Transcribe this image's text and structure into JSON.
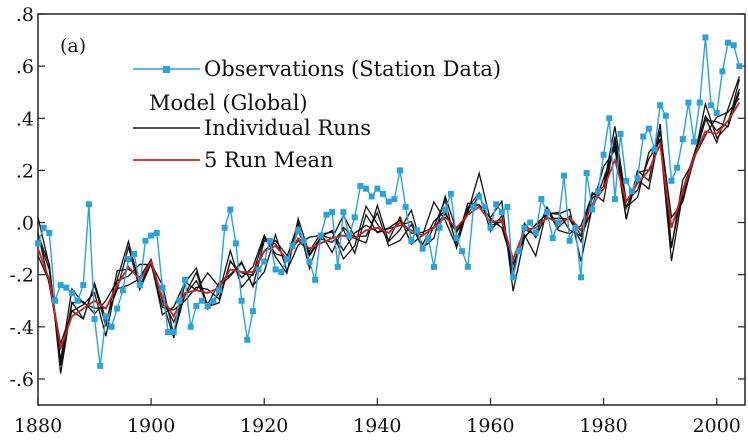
{
  "chart_data": {
    "type": "line",
    "panel_label": "(a)",
    "title": "",
    "xlabel": "",
    "ylabel": "",
    "xlim": [
      1880,
      2005
    ],
    "ylim": [
      -0.7,
      0.8
    ],
    "xticks": [
      1880,
      1900,
      1920,
      1940,
      1960,
      1980,
      2000
    ],
    "yticks": [
      {
        "value": 0.8,
        "label": ".8"
      },
      {
        "value": 0.6,
        "label": ".6"
      },
      {
        "value": 0.4,
        "label": ".4"
      },
      {
        "value": 0.2,
        "label": ".2"
      },
      {
        "value": 0.0,
        "label": ".0"
      },
      {
        "value": -0.2,
        "label": "-.2"
      },
      {
        "value": -0.4,
        "label": "-.4"
      },
      {
        "value": -0.6,
        "label": "-.6"
      }
    ],
    "grid": false,
    "legend": {
      "placement": "top-left",
      "entries": [
        {
          "label": "Observations (Station Data)",
          "color": "#29a3dc",
          "marker": "square"
        },
        {
          "label": "Model (Global)",
          "color": "",
          "marker": "none"
        },
        {
          "label": "Individual Runs",
          "color": "#111111",
          "marker": "none"
        },
        {
          "label": "5 Run Mean",
          "color": "#cc2222",
          "marker": "none"
        }
      ]
    },
    "series": [
      {
        "name": "Observations (Station Data)",
        "color": "#29a3dc",
        "x": [
          1880,
          1881,
          1882,
          1883,
          1884,
          1885,
          1886,
          1887,
          1888,
          1889,
          1890,
          1891,
          1892,
          1893,
          1894,
          1895,
          1896,
          1897,
          1898,
          1899,
          1900,
          1901,
          1902,
          1903,
          1904,
          1905,
          1906,
          1907,
          1908,
          1909,
          1910,
          1911,
          1912,
          1913,
          1914,
          1915,
          1916,
          1917,
          1918,
          1919,
          1920,
          1921,
          1922,
          1923,
          1924,
          1925,
          1926,
          1927,
          1928,
          1929,
          1930,
          1931,
          1932,
          1933,
          1934,
          1935,
          1936,
          1937,
          1938,
          1939,
          1940,
          1941,
          1942,
          1943,
          1944,
          1945,
          1946,
          1947,
          1948,
          1949,
          1950,
          1951,
          1952,
          1953,
          1954,
          1955,
          1956,
          1957,
          1958,
          1959,
          1960,
          1961,
          1962,
          1963,
          1964,
          1965,
          1966,
          1967,
          1968,
          1969,
          1970,
          1971,
          1972,
          1973,
          1974,
          1975,
          1976,
          1977,
          1978,
          1979,
          1980,
          1981,
          1982,
          1983,
          1984,
          1985,
          1986,
          1987,
          1988,
          1989,
          1990,
          1991,
          1992,
          1993,
          1994,
          1995,
          1996,
          1997,
          1998,
          1999,
          2000,
          2001,
          2002,
          2003,
          2004
        ],
        "values": [
          -0.08,
          -0.02,
          -0.04,
          -0.3,
          -0.24,
          -0.25,
          -0.27,
          -0.3,
          -0.24,
          0.07,
          -0.37,
          -0.55,
          -0.36,
          -0.4,
          -0.33,
          -0.26,
          -0.14,
          -0.12,
          -0.24,
          -0.07,
          -0.05,
          -0.04,
          -0.25,
          -0.42,
          -0.42,
          -0.3,
          -0.22,
          -0.4,
          -0.32,
          -0.3,
          -0.32,
          -0.3,
          -0.26,
          -0.02,
          0.05,
          -0.08,
          -0.3,
          -0.45,
          -0.34,
          -0.18,
          -0.15,
          -0.07,
          -0.18,
          -0.19,
          -0.14,
          -0.09,
          -0.03,
          -0.07,
          -0.15,
          -0.22,
          -0.05,
          0.03,
          0.04,
          -0.17,
          0.04,
          -0.05,
          0.02,
          0.14,
          0.13,
          0.1,
          0.13,
          0.11,
          0.08,
          0.09,
          0.2,
          0.06,
          -0.07,
          -0.03,
          -0.1,
          -0.06,
          -0.17,
          -0.02,
          0.05,
          0.11,
          -0.06,
          -0.11,
          -0.17,
          0.06,
          0.1,
          0.06,
          -0.02,
          0.07,
          0.04,
          0.06,
          -0.21,
          -0.11,
          -0.02,
          0.0,
          -0.04,
          0.09,
          0.04,
          -0.06,
          0.0,
          0.18,
          -0.07,
          -0.02,
          -0.21,
          0.19,
          0.05,
          0.12,
          0.26,
          0.4,
          0.09,
          0.34,
          0.16,
          0.12,
          0.17,
          0.33,
          0.36,
          0.28,
          0.45,
          0.41,
          0.16,
          0.21,
          0.32,
          0.46,
          0.31,
          0.46,
          0.71,
          0.45,
          0.42,
          0.58,
          0.69,
          0.68,
          0.6
        ]
      },
      {
        "name": "Individual Runs",
        "color": "#111111",
        "x": [
          1880,
          1882,
          1884,
          1886,
          1888,
          1890,
          1892,
          1894,
          1896,
          1898,
          1900,
          1902,
          1904,
          1906,
          1908,
          1910,
          1912,
          1914,
          1916,
          1918,
          1920,
          1922,
          1924,
          1926,
          1928,
          1930,
          1932,
          1934,
          1936,
          1938,
          1940,
          1942,
          1944,
          1946,
          1948,
          1950,
          1952,
          1954,
          1956,
          1958,
          1960,
          1962,
          1964,
          1966,
          1968,
          1970,
          1972,
          1974,
          1976,
          1978,
          1980,
          1982,
          1984,
          1986,
          1988,
          1990,
          1992,
          1994,
          1996,
          1998,
          2000,
          2002,
          2004
        ],
        "values": [
          -0.05,
          -0.2,
          -0.52,
          -0.34,
          -0.33,
          -0.28,
          -0.36,
          -0.22,
          -0.15,
          -0.23,
          -0.13,
          -0.3,
          -0.39,
          -0.26,
          -0.25,
          -0.28,
          -0.27,
          -0.16,
          -0.19,
          -0.21,
          -0.1,
          -0.06,
          -0.16,
          -0.03,
          -0.12,
          -0.08,
          -0.05,
          -0.06,
          -0.08,
          -0.01,
          0.0,
          -0.06,
          0.02,
          -0.02,
          -0.07,
          0.0,
          0.04,
          -0.06,
          0.05,
          0.1,
          -0.02,
          0.02,
          -0.2,
          -0.02,
          -0.04,
          0.04,
          0.0,
          0.02,
          -0.07,
          0.08,
          0.15,
          0.28,
          0.05,
          0.16,
          0.2,
          0.34,
          -0.06,
          0.1,
          0.28,
          0.4,
          0.35,
          0.4,
          0.49
        ]
      },
      {
        "name": "5 Run Mean",
        "color": "#cc2222",
        "x": [
          1880,
          1882,
          1884,
          1886,
          1888,
          1890,
          1892,
          1894,
          1896,
          1898,
          1900,
          1902,
          1904,
          1906,
          1908,
          1910,
          1912,
          1914,
          1916,
          1918,
          1920,
          1922,
          1924,
          1926,
          1928,
          1930,
          1932,
          1934,
          1936,
          1938,
          1940,
          1942,
          1944,
          1946,
          1948,
          1950,
          1952,
          1954,
          1956,
          1958,
          1960,
          1962,
          1964,
          1966,
          1968,
          1970,
          1972,
          1974,
          1976,
          1978,
          1980,
          1982,
          1984,
          1986,
          1988,
          1990,
          1992,
          1994,
          1996,
          1998,
          2000,
          2002,
          2004
        ],
        "values": [
          -0.1,
          -0.22,
          -0.48,
          -0.36,
          -0.33,
          -0.3,
          -0.33,
          -0.24,
          -0.17,
          -0.22,
          -0.15,
          -0.29,
          -0.36,
          -0.27,
          -0.26,
          -0.27,
          -0.25,
          -0.18,
          -0.19,
          -0.19,
          -0.11,
          -0.09,
          -0.14,
          -0.06,
          -0.1,
          -0.08,
          -0.06,
          -0.05,
          -0.06,
          -0.03,
          -0.02,
          -0.04,
          0.0,
          -0.03,
          -0.05,
          -0.02,
          0.02,
          -0.02,
          0.03,
          0.06,
          0.0,
          0.01,
          -0.14,
          -0.03,
          -0.02,
          0.02,
          0.0,
          0.02,
          -0.03,
          0.07,
          0.13,
          0.24,
          0.08,
          0.15,
          0.2,
          0.3,
          -0.02,
          0.12,
          0.25,
          0.35,
          0.34,
          0.39,
          0.46
        ]
      }
    ]
  }
}
